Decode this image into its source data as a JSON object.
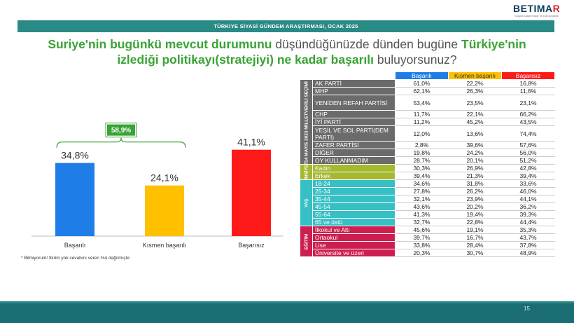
{
  "logo": {
    "text_main": "BETIMA",
    "text_x": "R",
    "subtitle": "Sosyal Araştırmalar ve Danışmanlık"
  },
  "header_title": "TÜRKİYE SİYASİ GÜNDEM ARAŞTIRMASI, OCAK 2025",
  "question": {
    "part1": "Suriye'nin bugünkü mevcut durumunu",
    "part2": " düşündüğünüzde dünden bugüne ",
    "part3": "Türkiye'nin izlediği politikayı(stratejiyi) ne kadar başarılı",
    "part4": " buluyorsunuz?"
  },
  "footnote": "* Bilmiyorum/ fikrim yok cevabını veren %4 dağılmıştır.",
  "page_number": "15",
  "colors": {
    "basarili": "#1f7de8",
    "kismen": "#ffc000",
    "basarisiz": "#ff1a1a",
    "party": "#6b6b6b",
    "gender": "#a6b830",
    "age": "#36bfc4",
    "edu": "#cc1f4f",
    "bracket": "#3aa335"
  },
  "chart_data": {
    "type": "bar",
    "categories": [
      "Başarılı",
      "Kısmen başarılı",
      "Başarısız"
    ],
    "values": [
      34.8,
      24.1,
      41.1
    ],
    "value_labels": [
      "34,8%",
      "24,1%",
      "41,1%"
    ],
    "ylim": [
      0,
      50
    ],
    "grid": false,
    "bracket_label": "58,9%"
  },
  "table": {
    "headers": [
      "Başarılı",
      "Kısmen başarılı",
      "Başarısız"
    ],
    "groups": [
      {
        "label": "14 MAYIS 2023 MİLLETVEKİLİ SEÇİMİ",
        "color_key": "party",
        "rows": [
          {
            "label": "AK PARTİ",
            "values": [
              "61,0%",
              "22,2%",
              "16,8%"
            ]
          },
          {
            "label": "MHP",
            "values": [
              "62,1%",
              "26,3%",
              "11,6%"
            ]
          },
          {
            "label": "YENİDEN REFAH PARTİSİ",
            "values": [
              "53,4%",
              "23,5%",
              "23,1%"
            ],
            "tall": true
          },
          {
            "label": "CHP",
            "values": [
              "11,7%",
              "22,1%",
              "66,2%"
            ]
          },
          {
            "label": "İYİ PARTİ",
            "values": [
              "11,2%",
              "45,2%",
              "43,5%"
            ]
          },
          {
            "label": "YEŞİL VE SOL PARTİ(DEM PARTİ)",
            "values": [
              "12,0%",
              "13,6%",
              "74,4%"
            ],
            "tall": true
          },
          {
            "label": "ZAFER PARTİSİ",
            "values": [
              "2,8%",
              "39,6%",
              "57,6%"
            ]
          },
          {
            "label": "DİĞER",
            "values": [
              "19,8%",
              "24,2%",
              "56,0%"
            ]
          },
          {
            "label": "OY KULLANMADIM",
            "values": [
              "28,7%",
              "20,1%",
              "51,2%"
            ]
          }
        ]
      },
      {
        "label": "CİNSİYET",
        "color_key": "gender",
        "rows": [
          {
            "label": "Kadın",
            "values": [
              "30,3%",
              "26,9%",
              "42,8%"
            ]
          },
          {
            "label": "Erkek",
            "values": [
              "39,4%",
              "21,3%",
              "39,4%"
            ]
          }
        ]
      },
      {
        "label": "YAŞ",
        "color_key": "age",
        "rows": [
          {
            "label": "18-24",
            "values": [
              "34,6%",
              "31,8%",
              "33,6%"
            ]
          },
          {
            "label": "25-34",
            "values": [
              "27,8%",
              "26,2%",
              "46,0%"
            ]
          },
          {
            "label": "35-44",
            "values": [
              "32,1%",
              "23,9%",
              "44,1%"
            ]
          },
          {
            "label": "45-54",
            "values": [
              "43,6%",
              "20,2%",
              "36,2%"
            ]
          },
          {
            "label": "55-64",
            "values": [
              "41,3%",
              "19,4%",
              "39,3%"
            ]
          },
          {
            "label": "65 ve üstü",
            "values": [
              "32,7%",
              "22,8%",
              "44,4%"
            ]
          }
        ]
      },
      {
        "label": "EĞİTİM",
        "color_key": "edu",
        "rows": [
          {
            "label": "İlkokul ve Altı",
            "values": [
              "45,6%",
              "19,1%",
              "35,3%"
            ]
          },
          {
            "label": "Ortaokul",
            "values": [
              "39,7%",
              "16,7%",
              "43,7%"
            ]
          },
          {
            "label": "Lise",
            "values": [
              "33,8%",
              "28,4%",
              "37,8%"
            ]
          },
          {
            "label": "Üniversite ve üzeri",
            "values": [
              "20,3%",
              "30,7%",
              "48,9%"
            ]
          }
        ]
      }
    ]
  }
}
